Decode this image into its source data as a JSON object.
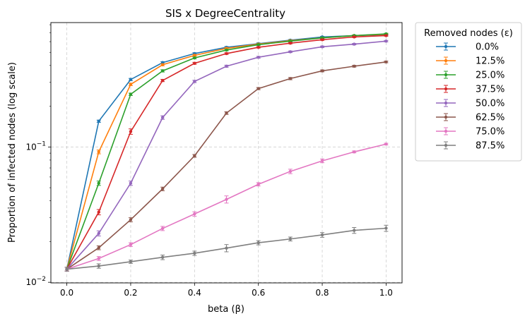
{
  "chart_data": {
    "type": "line",
    "title": "SIS x DegreeCentrality",
    "xlabel": "beta (β)",
    "ylabel": "Proportion of infected nodes (log scale)",
    "yscale": "log",
    "xlim": [
      -0.05,
      1.05
    ],
    "ylim": [
      0.0099,
      0.83
    ],
    "grid": true,
    "x": [
      0.0,
      0.1,
      0.2,
      0.3,
      0.4,
      0.5,
      0.6,
      0.7,
      0.8,
      0.9,
      1.0
    ],
    "xticks": [
      {
        "value": 0.0,
        "label": "0.0"
      },
      {
        "value": 0.2,
        "label": "0.2"
      },
      {
        "value": 0.4,
        "label": "0.4"
      },
      {
        "value": 0.6,
        "label": "0.6"
      },
      {
        "value": 0.8,
        "label": "0.8"
      },
      {
        "value": 1.0,
        "label": "1.0"
      }
    ],
    "yticks": [
      {
        "value": 0.01,
        "base": "10",
        "exp": "−2"
      },
      {
        "value": 0.1,
        "base": "10",
        "exp": "−1"
      }
    ],
    "legend": {
      "title": "Removed nodes (ε)",
      "position": "outside-upper-right"
    },
    "series": [
      {
        "name": "0.0%",
        "color": "#1f77b4",
        "values": [
          0.0125,
          0.155,
          0.315,
          0.42,
          0.49,
          0.545,
          0.58,
          0.615,
          0.65,
          0.665,
          0.675
        ],
        "errors": [
          0.0004,
          0.003,
          0.006,
          0.007,
          0.007,
          0.007,
          0.007,
          0.007,
          0.007,
          0.007,
          0.007
        ]
      },
      {
        "name": "12.5%",
        "color": "#ff7f0e",
        "values": [
          0.0125,
          0.092,
          0.29,
          0.405,
          0.475,
          0.535,
          0.575,
          0.61,
          0.64,
          0.665,
          0.68
        ],
        "errors": [
          0.0004,
          0.003,
          0.006,
          0.007,
          0.007,
          0.007,
          0.007,
          0.007,
          0.007,
          0.007,
          0.007
        ]
      },
      {
        "name": "25.0%",
        "color": "#2ca02c",
        "values": [
          0.0125,
          0.054,
          0.245,
          0.365,
          0.455,
          0.52,
          0.57,
          0.605,
          0.64,
          0.665,
          0.685
        ],
        "errors": [
          0.0004,
          0.002,
          0.005,
          0.007,
          0.007,
          0.007,
          0.007,
          0.007,
          0.007,
          0.007,
          0.007
        ]
      },
      {
        "name": "37.5%",
        "color": "#d62728",
        "values": [
          0.0125,
          0.033,
          0.13,
          0.31,
          0.415,
          0.49,
          0.545,
          0.585,
          0.62,
          0.65,
          0.665
        ],
        "errors": [
          0.0004,
          0.0015,
          0.006,
          0.006,
          0.007,
          0.007,
          0.007,
          0.007,
          0.007,
          0.007,
          0.007
        ]
      },
      {
        "name": "50.0%",
        "color": "#9467bd",
        "values": [
          0.0125,
          0.023,
          0.054,
          0.165,
          0.305,
          0.395,
          0.46,
          0.505,
          0.55,
          0.575,
          0.605
        ],
        "errors": [
          0.0004,
          0.001,
          0.002,
          0.005,
          0.006,
          0.007,
          0.007,
          0.007,
          0.007,
          0.007,
          0.007
        ]
      },
      {
        "name": "62.5%",
        "color": "#8c564b",
        "values": [
          0.0125,
          0.018,
          0.029,
          0.049,
          0.086,
          0.178,
          0.27,
          0.32,
          0.365,
          0.395,
          0.425
        ],
        "errors": [
          0.0004,
          0.0006,
          0.001,
          0.0015,
          0.002,
          0.004,
          0.005,
          0.006,
          0.006,
          0.006,
          0.006
        ]
      },
      {
        "name": "75.0%",
        "color": "#e377c2",
        "values": [
          0.0125,
          0.015,
          0.019,
          0.025,
          0.032,
          0.041,
          0.053,
          0.066,
          0.079,
          0.092,
          0.105
        ],
        "errors": [
          0.0004,
          0.0005,
          0.0006,
          0.0009,
          0.0012,
          0.0025,
          0.0015,
          0.0025,
          0.0025,
          0.0015,
          0.0015
        ]
      },
      {
        "name": "87.5%",
        "color": "#7f7f7f",
        "values": [
          0.0125,
          0.0132,
          0.0142,
          0.0153,
          0.0164,
          0.0179,
          0.0196,
          0.0209,
          0.0224,
          0.0242,
          0.0251
        ],
        "errors": [
          0.0004,
          0.0005,
          0.0004,
          0.0006,
          0.0006,
          0.0011,
          0.0007,
          0.0007,
          0.0009,
          0.0012,
          0.0013
        ]
      }
    ]
  }
}
